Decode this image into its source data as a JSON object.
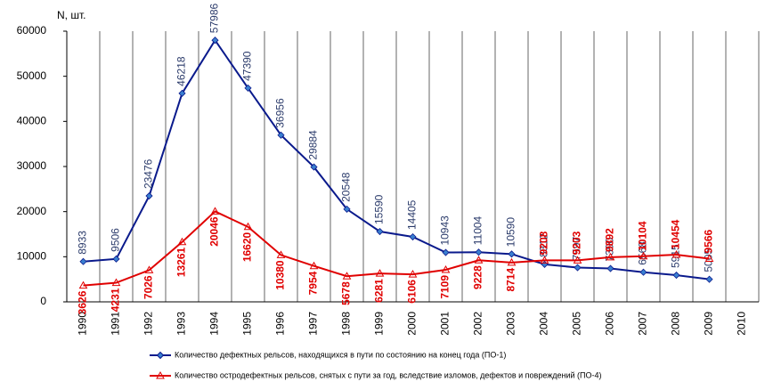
{
  "chart_data": {
    "type": "line",
    "y_label": "N, шт.",
    "categories": [
      "1990",
      "1991",
      "1992",
      "1993",
      "1994",
      "1995",
      "1996",
      "1997",
      "1998",
      "1999",
      "2000",
      "2001",
      "2002",
      "2003",
      "2004",
      "2005",
      "2006",
      "2007",
      "2008",
      "2009",
      "2010"
    ],
    "series": [
      {
        "name": "Количество дефектных рельсов, находящихся в пути по состоянию на конец года (ПО-1)",
        "color": "#0a1a8c",
        "marker": "diamond",
        "values": [
          8933,
          9506,
          23476,
          46218,
          57986,
          47390,
          36956,
          29884,
          20548,
          15590,
          14405,
          10943,
          11004,
          10590,
          8312,
          7597,
          7390,
          6568,
          5915,
          5005,
          null
        ]
      },
      {
        "name": "Количество остродефектных рельсов, снятых с пути за год, вследствие изломов, дефектов и повреждений (ПО-4)",
        "color": "#e00000",
        "marker": "triangle",
        "values": [
          3626,
          4231,
          7026,
          13261,
          20046,
          16620,
          10380,
          7954,
          5678,
          6281,
          6106,
          7109,
          9228,
          8714,
          9208,
          9203,
          9892,
          10104,
          10454,
          9566,
          null
        ]
      }
    ],
    "ylim": [
      0,
      60000
    ],
    "yticks": [
      0,
      10000,
      20000,
      30000,
      40000,
      50000,
      60000
    ],
    "grid": "x"
  }
}
